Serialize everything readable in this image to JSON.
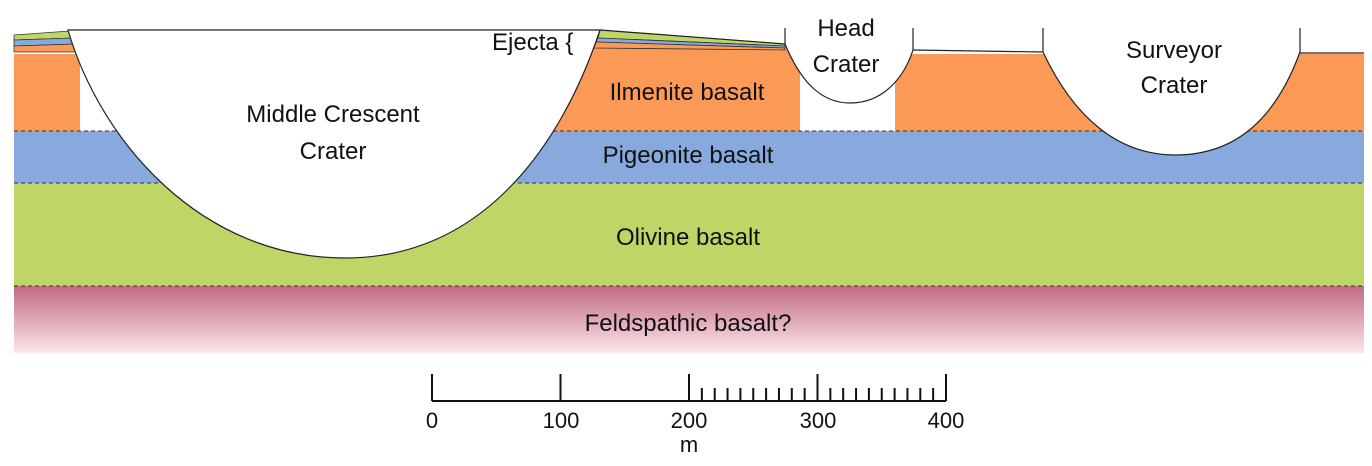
{
  "layers": {
    "ilmenite": {
      "label": "Ilmenite basalt",
      "color": "#fb9a56"
    },
    "pigeonite": {
      "label": "Pigeonite basalt",
      "color": "#88a9dd"
    },
    "olivine": {
      "label": "Olivine basalt",
      "color": "#bed665"
    },
    "feldspathic": {
      "label": "Feldspathic basalt?",
      "color_top": "#c16a84",
      "color_bottom": "#fde6ea"
    }
  },
  "craters": {
    "middle_crescent": {
      "line1": "Middle Crescent",
      "line2": "Crater"
    },
    "head": {
      "line1": "Head",
      "line2": "Crater"
    },
    "surveyor": {
      "line1": "Surveyor",
      "line2": "Crater"
    }
  },
  "ejecta": {
    "label": "Ejecta {"
  },
  "scale_bar": {
    "ticks": [
      "0",
      "100",
      "200",
      "300",
      "400"
    ],
    "unit": "m"
  }
}
